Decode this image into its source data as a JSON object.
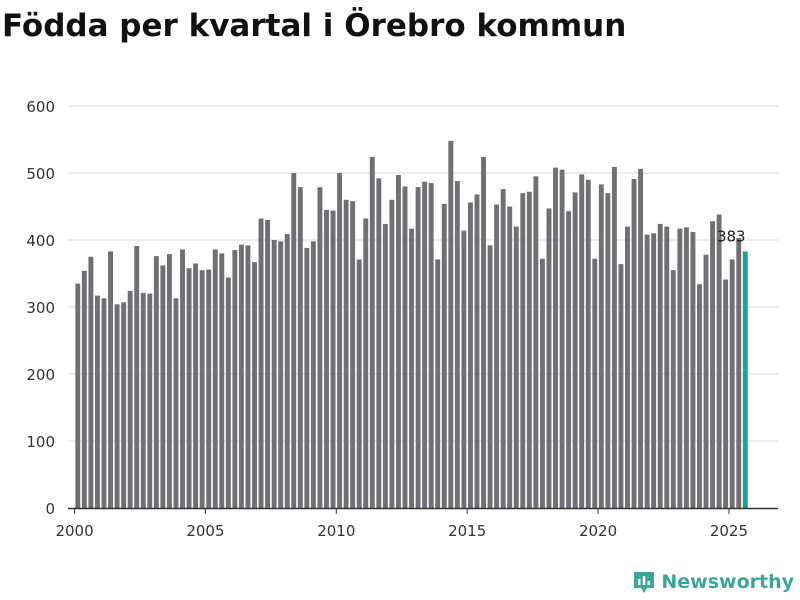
{
  "title": "Födda per kvartal i Örebro kommun",
  "brand": {
    "name": "Newsworthy"
  },
  "colors": {
    "bar": "#707074",
    "highlight": "#1aa39b",
    "grid": "#d9d9d9",
    "axis": "#333333",
    "brand": "#3aa79a"
  },
  "chart_data": {
    "type": "bar",
    "title": "Födda per kvartal i Örebro kommun",
    "xlabel": "",
    "ylabel": "",
    "ylim": [
      0,
      600
    ],
    "yticks": [
      0,
      100,
      200,
      300,
      400,
      500,
      600
    ],
    "xlim": [
      1999.75,
      2026.875
    ],
    "xticks": [
      2000,
      2005,
      2010,
      2015,
      2020,
      2025
    ],
    "grid": true,
    "highlight_label": "383",
    "x": [
      2000.125,
      2000.375,
      2000.625,
      2000.875,
      2001.125,
      2001.375,
      2001.625,
      2001.875,
      2002.125,
      2002.375,
      2002.625,
      2002.875,
      2003.125,
      2003.375,
      2003.625,
      2003.875,
      2004.125,
      2004.375,
      2004.625,
      2004.875,
      2005.125,
      2005.375,
      2005.625,
      2005.875,
      2006.125,
      2006.375,
      2006.625,
      2006.875,
      2007.125,
      2007.375,
      2007.625,
      2007.875,
      2008.125,
      2008.375,
      2008.625,
      2008.875,
      2009.125,
      2009.375,
      2009.625,
      2009.875,
      2010.125,
      2010.375,
      2010.625,
      2010.875,
      2011.125,
      2011.375,
      2011.625,
      2011.875,
      2012.125,
      2012.375,
      2012.625,
      2012.875,
      2013.125,
      2013.375,
      2013.625,
      2013.875,
      2014.125,
      2014.375,
      2014.625,
      2014.875,
      2015.125,
      2015.375,
      2015.625,
      2015.875,
      2016.125,
      2016.375,
      2016.625,
      2016.875,
      2017.125,
      2017.375,
      2017.625,
      2017.875,
      2018.125,
      2018.375,
      2018.625,
      2018.875,
      2019.125,
      2019.375,
      2019.625,
      2019.875,
      2020.125,
      2020.375,
      2020.625,
      2020.875,
      2021.125,
      2021.375,
      2021.625,
      2021.875,
      2022.125,
      2022.375,
      2022.625,
      2022.875,
      2023.125,
      2023.375,
      2023.625,
      2023.875,
      2024.125,
      2024.375,
      2024.625,
      2024.875,
      2025.125,
      2025.375,
      2025.625
    ],
    "values": [
      335,
      354,
      375,
      317,
      313,
      383,
      304,
      307,
      324,
      391,
      321,
      320,
      376,
      362,
      379,
      313,
      386,
      358,
      365,
      355,
      356,
      386,
      380,
      344,
      385,
      393,
      392,
      367,
      432,
      430,
      400,
      398,
      409,
      500,
      479,
      388,
      398,
      479,
      445,
      444,
      500,
      460,
      458,
      371,
      432,
      524,
      492,
      424,
      460,
      497,
      480,
      417,
      479,
      487,
      485,
      371,
      454,
      548,
      488,
      414,
      456,
      468,
      524,
      392,
      453,
      476,
      450,
      420,
      470,
      472,
      495,
      372,
      447,
      508,
      505,
      443,
      471,
      498,
      490,
      372,
      483,
      470,
      509,
      364,
      420,
      491,
      506,
      408,
      410,
      424,
      420,
      355,
      417,
      419,
      412,
      334,
      378,
      428,
      438,
      341,
      371,
      403,
      383
    ]
  }
}
